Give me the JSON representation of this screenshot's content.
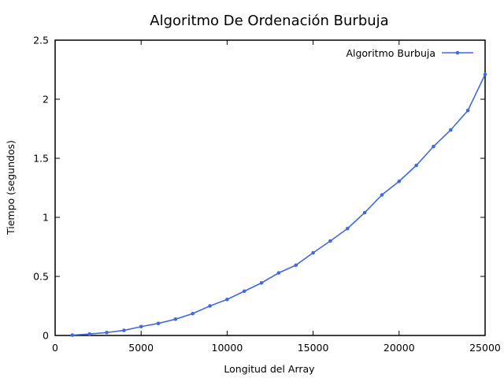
{
  "chart_data": {
    "type": "line",
    "title": "Algoritmo De Ordenación Burbuja",
    "xlabel": "Longitud del Array",
    "ylabel": "Tiempo (segundos)",
    "xlim": [
      0,
      25000
    ],
    "ylim": [
      0,
      2.5
    ],
    "xticks": [
      0,
      5000,
      10000,
      15000,
      20000,
      25000
    ],
    "xtick_labels": [
      "0",
      "5000",
      "10000",
      "15000",
      "20000",
      "25000"
    ],
    "yticks": [
      0,
      0.5,
      1,
      1.5,
      2,
      2.5
    ],
    "ytick_labels": [
      "0",
      "0.5",
      "1",
      "1.5",
      "2",
      "2.5"
    ],
    "grid": false,
    "legend_position": "top-right",
    "series": [
      {
        "name": "Algoritmo Burbuja",
        "color": "#4169e1",
        "marker": "circle",
        "x": [
          1000,
          2000,
          3000,
          4000,
          5000,
          6000,
          7000,
          8000,
          9000,
          10000,
          11000,
          12000,
          13000,
          14000,
          15000,
          16000,
          17000,
          18000,
          19000,
          20000,
          21000,
          22000,
          23000,
          24000,
          25000
        ],
        "y": [
          0.003,
          0.012,
          0.025,
          0.043,
          0.075,
          0.102,
          0.138,
          0.185,
          0.25,
          0.305,
          0.375,
          0.445,
          0.53,
          0.595,
          0.7,
          0.8,
          0.905,
          1.04,
          1.19,
          1.305,
          1.44,
          1.6,
          1.74,
          1.905,
          2.21
        ]
      }
    ]
  }
}
